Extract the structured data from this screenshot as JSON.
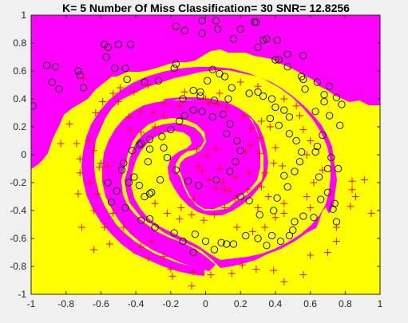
{
  "title": "K= 5  Number Of Miss Classification= 30 SNR= 12.8256",
  "colors": {
    "figure_bg": "#f0f0f0",
    "region_class_a": "#ff00ff",
    "region_class_b": "#ffff00",
    "marker_circle": "#000000",
    "marker_plus": "#e8141e",
    "axis": "#262626"
  },
  "chart_data": {
    "type": "scatter",
    "title": "K= 5  Number Of Miss Classification= 30 SNR= 12.8256",
    "xlabel": "",
    "ylabel": "",
    "xlim": [
      -1,
      1
    ],
    "ylim": [
      -1,
      1
    ],
    "grid": false,
    "legend": "none",
    "x_ticks": [
      "-1",
      "-0.8",
      "-0.6",
      "-0.4",
      "-0.2",
      "0",
      "0.2",
      "0.4",
      "0.6",
      "0.8",
      "1"
    ],
    "y_ticks": [
      "1",
      "0.8",
      "0.6",
      "0.4",
      "0.2",
      "0",
      "-0.2",
      "-0.4",
      "-0.6",
      "-0.8",
      "-1"
    ],
    "background": "decision regions of a k-nearest-neighbour classifier on a two-arm spiral: magenta region (circle class) and yellow region (plus class)",
    "series": [
      {
        "marker": "circle",
        "color": "#000000",
        "points": [
          [
            -0.99,
            0.35
          ],
          [
            -0.91,
            0.64
          ],
          [
            -0.86,
            0.63
          ],
          [
            -0.88,
            0.52
          ],
          [
            -0.84,
            0.47
          ],
          [
            -0.73,
            0.6
          ],
          [
            -0.72,
            0.57
          ],
          [
            -0.7,
            0.48
          ],
          [
            -0.58,
            0.79
          ],
          [
            -0.56,
            0.77
          ],
          [
            -0.5,
            0.79
          ],
          [
            -0.57,
            0.7
          ],
          [
            -0.52,
            0.62
          ],
          [
            -0.46,
            0.62
          ],
          [
            -0.43,
            0.79
          ],
          [
            -0.45,
            0.54
          ],
          [
            -0.35,
            0.52
          ],
          [
            -0.27,
            0.53
          ],
          [
            -0.18,
            0.62
          ],
          [
            -0.17,
            0.65
          ],
          [
            -0.07,
            0.46
          ],
          [
            -0.03,
            0.42
          ],
          [
            0.01,
            0.53
          ],
          [
            0.04,
            0.61
          ],
          [
            0.08,
            0.58
          ],
          [
            0.11,
            0.56
          ],
          [
            0.15,
            0.48
          ],
          [
            0.13,
            0.4
          ],
          [
            -0.17,
            0.92
          ],
          [
            -0.12,
            0.89
          ],
          [
            -0.02,
            0.96
          ],
          [
            -0.02,
            0.87
          ],
          [
            0.06,
            0.96
          ],
          [
            0.07,
            0.9
          ],
          [
            0.16,
            0.83
          ],
          [
            0.2,
            0.9
          ],
          [
            0.28,
            0.95
          ],
          [
            0.29,
            0.95
          ],
          [
            0.33,
            0.82
          ],
          [
            0.35,
            0.83
          ],
          [
            0.3,
            0.77
          ],
          [
            0.41,
            0.82
          ],
          [
            0.4,
            0.68
          ],
          [
            0.42,
            0.68
          ],
          [
            0.47,
            0.72
          ],
          [
            0.47,
            0.63
          ],
          [
            0.56,
            0.71
          ],
          [
            0.55,
            0.56
          ],
          [
            0.56,
            0.54
          ],
          [
            0.57,
            0.47
          ],
          [
            0.64,
            0.52
          ],
          [
            0.71,
            0.49
          ],
          [
            0.68,
            0.43
          ],
          [
            0.75,
            0.41
          ],
          [
            0.78,
            0.36
          ],
          [
            0.68,
            0.38
          ],
          [
            0.63,
            0.31
          ],
          [
            0.71,
            0.28
          ],
          [
            0.77,
            0.21
          ],
          [
            0.67,
            0.14
          ],
          [
            0.64,
            0.06
          ],
          [
            0.63,
            0.02
          ],
          [
            0.72,
            -0.02
          ],
          [
            0.7,
            -0.1
          ],
          [
            0.76,
            -0.1
          ],
          [
            0.65,
            -0.16
          ],
          [
            0.7,
            -0.27
          ],
          [
            0.66,
            -0.32
          ],
          [
            0.74,
            -0.35
          ],
          [
            0.73,
            -0.39
          ],
          [
            0.75,
            -0.48
          ],
          [
            0.62,
            -0.45
          ],
          [
            0.56,
            -0.44
          ],
          [
            0.51,
            -0.48
          ],
          [
            0.5,
            -0.54
          ],
          [
            0.48,
            -0.58
          ],
          [
            0.43,
            -0.62
          ],
          [
            0.38,
            -0.58
          ],
          [
            0.35,
            -0.65
          ],
          [
            0.3,
            -0.6
          ],
          [
            0.23,
            -0.58
          ],
          [
            0.16,
            -0.64
          ],
          [
            0.12,
            -0.64
          ],
          [
            0.09,
            -0.63
          ],
          [
            0.05,
            -0.68
          ],
          [
            0.0,
            -0.62
          ],
          [
            -0.06,
            -0.57
          ],
          [
            -0.07,
            -0.7
          ],
          [
            -0.13,
            -0.62
          ],
          [
            -0.18,
            -0.56
          ],
          [
            -0.29,
            -0.52
          ],
          [
            -0.32,
            -0.46
          ],
          [
            -0.37,
            -0.47
          ],
          [
            -0.46,
            -0.38
          ],
          [
            -0.54,
            -0.34
          ],
          [
            -0.51,
            -0.26
          ],
          [
            -0.56,
            -0.2
          ],
          [
            -0.48,
            -0.11
          ],
          [
            -0.47,
            -0.06
          ],
          [
            -0.42,
            0.03
          ],
          [
            -0.32,
            0.04
          ],
          [
            -0.38,
            0.07
          ],
          [
            -0.32,
            0.11
          ],
          [
            -0.25,
            0.13
          ],
          [
            -0.2,
            0.18
          ],
          [
            -0.15,
            0.24
          ],
          [
            -0.12,
            0.28
          ],
          [
            -0.07,
            0.32
          ],
          [
            -0.02,
            0.31
          ],
          [
            0.04,
            0.27
          ],
          [
            0.1,
            0.29
          ],
          [
            0.14,
            0.22
          ],
          [
            0.12,
            0.15
          ],
          [
            0.18,
            0.1
          ],
          [
            0.2,
            0.03
          ],
          [
            0.17,
            -0.05
          ],
          [
            0.14,
            -0.12
          ],
          [
            0.06,
            -0.18
          ],
          [
            -0.04,
            -0.22
          ],
          [
            -0.1,
            -0.19
          ],
          [
            -0.17,
            -0.11
          ],
          [
            -0.22,
            -0.02
          ],
          [
            -0.24,
            0.05
          ],
          [
            -0.26,
            -0.18
          ],
          [
            -0.31,
            -0.27
          ],
          [
            -0.32,
            -0.28
          ],
          [
            -0.35,
            -0.3
          ],
          [
            -0.38,
            -0.22
          ],
          [
            -0.41,
            -0.16
          ],
          [
            -0.44,
            -0.2
          ],
          [
            -0.37,
            0.08
          ],
          [
            -0.33,
            -0.05
          ],
          [
            -0.03,
            0.45
          ],
          [
            0.05,
            0.39
          ],
          [
            -0.13,
            0.4
          ],
          [
            0.25,
            0.44
          ],
          [
            0.3,
            0.45
          ],
          [
            0.33,
            0.42
          ],
          [
            0.38,
            0.4
          ],
          [
            0.4,
            0.34
          ],
          [
            0.45,
            0.32
          ],
          [
            0.48,
            0.27
          ],
          [
            0.37,
            0.26
          ],
          [
            0.42,
            0.21
          ],
          [
            0.48,
            0.15
          ],
          [
            0.52,
            0.1
          ],
          [
            0.55,
            0.02
          ],
          [
            0.54,
            -0.05
          ],
          [
            0.51,
            -0.12
          ],
          [
            0.45,
            -0.15
          ],
          [
            0.47,
            -0.23
          ],
          [
            0.41,
            -0.31
          ],
          [
            0.39,
            -0.4
          ],
          [
            0.31,
            -0.43
          ],
          [
            0.25,
            -0.33
          ],
          [
            0.2,
            -0.3
          ]
        ]
      },
      {
        "marker": "plus",
        "color": "#e8141e",
        "points": [
          [
            -0.7,
            0.55
          ],
          [
            -0.53,
            0.44
          ],
          [
            -0.59,
            0.38
          ],
          [
            -0.5,
            0.38
          ],
          [
            -0.63,
            0.3
          ],
          [
            -0.78,
            0.22
          ],
          [
            -0.83,
            0.08
          ],
          [
            -0.74,
            0.08
          ],
          [
            -0.67,
            0.1
          ],
          [
            -0.64,
            0.03
          ],
          [
            -0.72,
            -0.03
          ],
          [
            -0.61,
            -0.09
          ],
          [
            -0.72,
            -0.13
          ],
          [
            -0.66,
            -0.2
          ],
          [
            -0.73,
            -0.28
          ],
          [
            -0.62,
            -0.28
          ],
          [
            -0.64,
            -0.4
          ],
          [
            -0.53,
            -0.42
          ],
          [
            -0.71,
            -0.52
          ],
          [
            -0.58,
            -0.52
          ],
          [
            -0.47,
            -0.52
          ],
          [
            -0.64,
            -0.68
          ],
          [
            -0.55,
            -0.64
          ],
          [
            -0.37,
            -0.66
          ],
          [
            -0.31,
            -0.62
          ],
          [
            -0.33,
            -0.74
          ],
          [
            -0.24,
            -0.73
          ],
          [
            -0.2,
            -0.82
          ],
          [
            -0.19,
            -0.87
          ],
          [
            -0.07,
            -0.84
          ],
          [
            -0.08,
            -0.94
          ],
          [
            0.03,
            -0.86
          ],
          [
            0.15,
            -0.85
          ],
          [
            0.21,
            -0.79
          ],
          [
            0.29,
            -0.82
          ],
          [
            0.39,
            -0.83
          ],
          [
            0.45,
            -0.91
          ],
          [
            0.56,
            -0.86
          ],
          [
            0.6,
            -0.72
          ],
          [
            0.7,
            -0.7
          ],
          [
            0.75,
            -0.62
          ],
          [
            0.75,
            -0.52
          ],
          [
            0.83,
            -0.37
          ],
          [
            0.84,
            -0.25
          ],
          [
            0.84,
            -0.19
          ],
          [
            0.91,
            -0.18
          ],
          [
            0.95,
            -0.42
          ],
          [
            0.86,
            -0.3
          ],
          [
            -0.49,
            0.48
          ],
          [
            -0.41,
            0.45
          ],
          [
            -0.33,
            0.5
          ],
          [
            -0.37,
            0.31
          ],
          [
            -0.3,
            0.3
          ],
          [
            -0.24,
            0.28
          ],
          [
            -0.29,
            0.2
          ],
          [
            -0.37,
            0.16
          ],
          [
            -0.44,
            0.27
          ],
          [
            -0.43,
            0.18
          ],
          [
            -0.12,
            0.45
          ],
          [
            0.0,
            0.4
          ],
          [
            0.08,
            0.44
          ],
          [
            0.02,
            0.37
          ],
          [
            0.07,
            0.36
          ],
          [
            0.12,
            0.34
          ],
          [
            0.22,
            0.28
          ],
          [
            0.26,
            0.19
          ],
          [
            0.31,
            0.12
          ],
          [
            0.26,
            0.07
          ],
          [
            0.31,
            0.01
          ],
          [
            0.23,
            0.02
          ],
          [
            0.25,
            -0.13
          ],
          [
            0.17,
            -0.16
          ],
          [
            0.1,
            -0.2
          ],
          [
            0.14,
            -0.26
          ],
          [
            0.06,
            -0.24
          ],
          [
            0.02,
            -0.18
          ],
          [
            -0.02,
            -0.12
          ],
          [
            -0.04,
            -0.08
          ],
          [
            0.01,
            -0.01
          ],
          [
            -0.05,
            0.04
          ],
          [
            0.06,
            0.04
          ],
          [
            0.08,
            -0.1
          ],
          [
            0.11,
            -0.25
          ],
          [
            0.32,
            0.24
          ],
          [
            0.37,
            0.2
          ],
          [
            0.4,
            0.05
          ],
          [
            0.39,
            -0.06
          ],
          [
            0.44,
            -0.08
          ],
          [
            0.34,
            -0.13
          ],
          [
            0.32,
            -0.23
          ],
          [
            0.24,
            -0.25
          ],
          [
            0.17,
            -0.31
          ],
          [
            0.11,
            -0.38
          ],
          [
            0.05,
            -0.43
          ],
          [
            -0.01,
            -0.47
          ],
          [
            -0.08,
            -0.43
          ],
          [
            -0.15,
            -0.46
          ],
          [
            -0.14,
            -0.38
          ],
          [
            -0.07,
            -0.32
          ],
          [
            -0.22,
            -0.42
          ],
          [
            -0.29,
            -0.35
          ],
          [
            0.3,
            -0.38
          ],
          [
            0.36,
            -0.3
          ],
          [
            0.45,
            -0.35
          ],
          [
            0.6,
            -0.38
          ],
          [
            0.58,
            -0.3
          ],
          [
            0.62,
            -0.2
          ],
          [
            0.67,
            -0.11
          ],
          [
            0.58,
            0.0
          ],
          [
            0.6,
            0.1
          ],
          [
            0.56,
            0.18
          ],
          [
            0.54,
            0.28
          ],
          [
            0.52,
            0.35
          ],
          [
            0.45,
            0.4
          ],
          [
            0.3,
            0.49
          ],
          [
            0.2,
            0.52
          ],
          [
            -0.56,
            -0.08
          ],
          [
            -0.6,
            -0.06
          ],
          [
            0.45,
            -0.42
          ],
          [
            0.4,
            -0.45
          ],
          [
            0.34,
            -0.52
          ],
          [
            0.27,
            -0.55
          ],
          [
            0.18,
            -0.52
          ],
          [
            -0.24,
            0.37
          ],
          [
            -0.15,
            0.35
          ]
        ]
      }
    ]
  }
}
